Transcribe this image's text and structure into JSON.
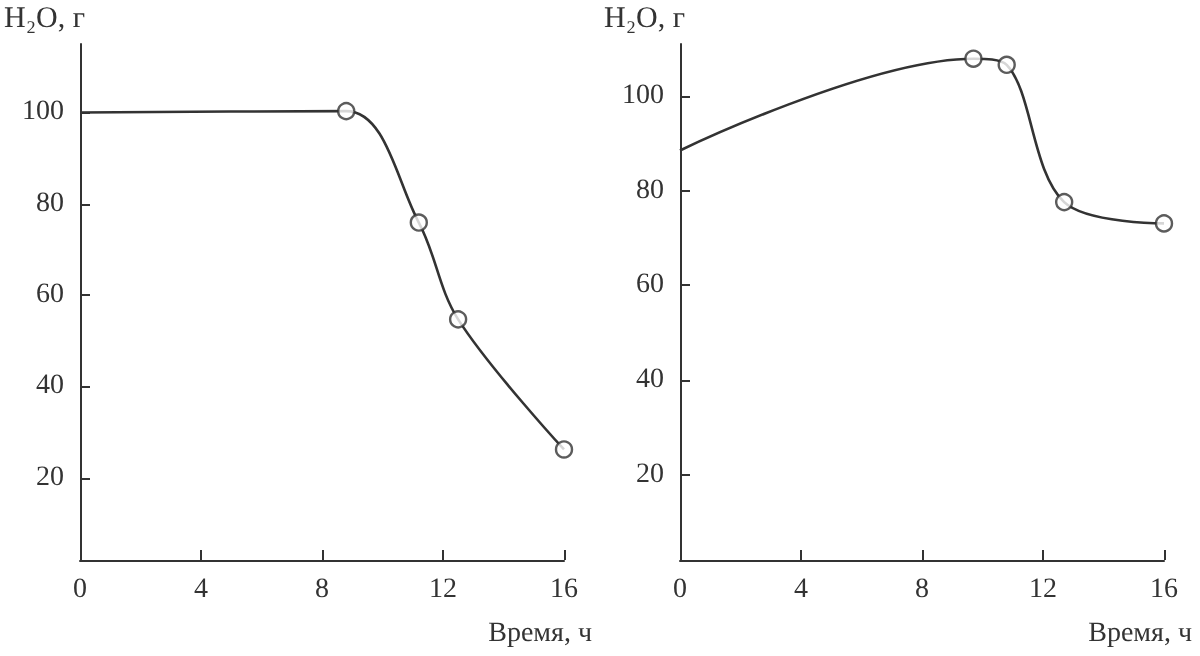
{
  "chart_data": [
    {
      "type": "line",
      "ylabel": "H₂O, г",
      "xlabel": "Время, ч",
      "xlim": [
        0,
        16
      ],
      "xticks": [
        0,
        4,
        8,
        12,
        16
      ],
      "ylim": [
        2,
        115
      ],
      "yticks": [
        20,
        40,
        60,
        80,
        100
      ],
      "grid": false,
      "series": [
        {
          "marker": "none",
          "color": "#333333",
          "x": [
            0,
            8.8,
            11.2,
            12.5,
            16
          ],
          "values": [
            100,
            100.3,
            75.9,
            54.7,
            26.2
          ]
        },
        {
          "type": "scatter",
          "marker": "circle",
          "color": "#333333",
          "x": [
            8.8,
            11.2,
            12.5,
            16
          ],
          "values": [
            100.3,
            75.9,
            54.7,
            26.2
          ]
        }
      ]
    },
    {
      "type": "line",
      "ylabel": "H₂O, г",
      "xlabel": "Время, ч",
      "xlim": [
        0,
        16
      ],
      "xticks": [
        0,
        4,
        8,
        12,
        16
      ],
      "ylim": [
        2,
        111
      ],
      "yticks": [
        20,
        40,
        60,
        80,
        100
      ],
      "grid": false,
      "series": [
        {
          "marker": "none",
          "color": "#333333",
          "x": [
            0,
            9.7,
            10.8,
            12.7,
            16
          ],
          "values": [
            88.5,
            107.9,
            106.6,
            77.6,
            73.1
          ]
        },
        {
          "type": "scatter",
          "marker": "circle",
          "color": "#333333",
          "x": [
            9.7,
            10.8,
            12.7,
            16
          ],
          "values": [
            107.9,
            106.6,
            77.6,
            73.1
          ]
        }
      ]
    }
  ]
}
